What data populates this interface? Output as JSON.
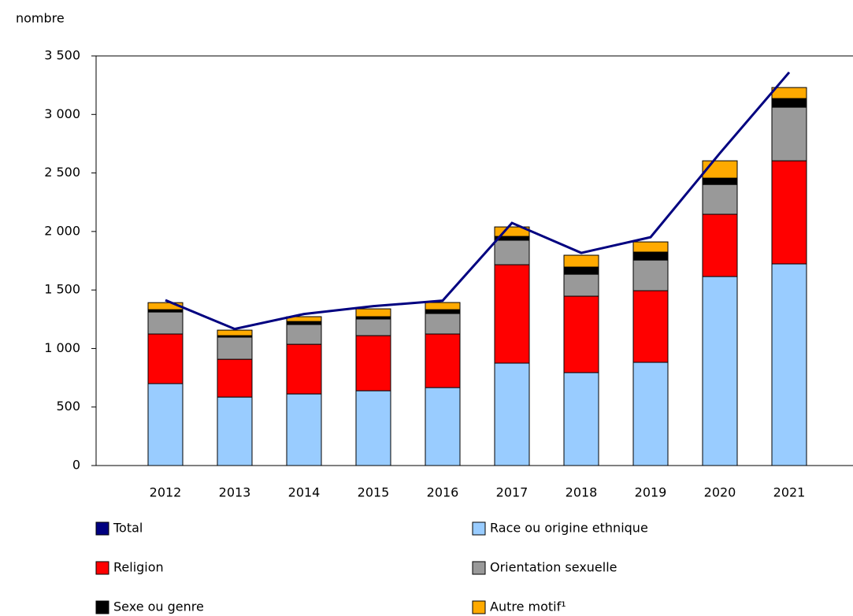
{
  "chart_data": {
    "type": "bar",
    "stacked": true,
    "y_label": "nombre",
    "categories": [
      "2012",
      "2013",
      "2014",
      "2015",
      "2016",
      "2017",
      "2018",
      "2019",
      "2020",
      "2021"
    ],
    "series": [
      {
        "name": "Total",
        "type": "line",
        "color": "#000080",
        "values": [
          1413,
          1167,
          1295,
          1362,
          1409,
          2073,
          1817,
          1951,
          2669,
          3360
        ]
      },
      {
        "name": "Race ou origine ethnique",
        "color": "#99ccff",
        "values": [
          700,
          585,
          612,
          639,
          666,
          875,
          794,
          882,
          1615,
          1723
        ]
      },
      {
        "name": "Religion",
        "color": "#ff0000",
        "values": [
          424,
          323,
          424,
          471,
          458,
          841,
          653,
          612,
          532,
          881
        ]
      },
      {
        "name": "Orientation sexuelle",
        "color": "#999999",
        "values": [
          188,
          189,
          169,
          142,
          175,
          209,
          188,
          262,
          255,
          458
        ]
      },
      {
        "name": "Sexe ou genre",
        "color": "#000000",
        "values": [
          20,
          13,
          26,
          20,
          33,
          33,
          61,
          68,
          54,
          74
        ]
      },
      {
        "name": "Autre motif¹",
        "color": "#ffaa00",
        "values": [
          60,
          47,
          41,
          67,
          61,
          81,
          101,
          87,
          148,
          94
        ]
      }
    ],
    "ylim": [
      0,
      3500
    ],
    "yticks": [
      0,
      500,
      {
        "value": 1000,
        "label": "1 000"
      },
      {
        "value": 1500,
        "label": "1 500"
      },
      {
        "value": 2000,
        "label": "2 000"
      },
      {
        "value": 2500,
        "label": "2 500"
      },
      {
        "value": 3000,
        "label": "3 000"
      },
      {
        "value": 3500,
        "label": "3 500"
      }
    ]
  }
}
